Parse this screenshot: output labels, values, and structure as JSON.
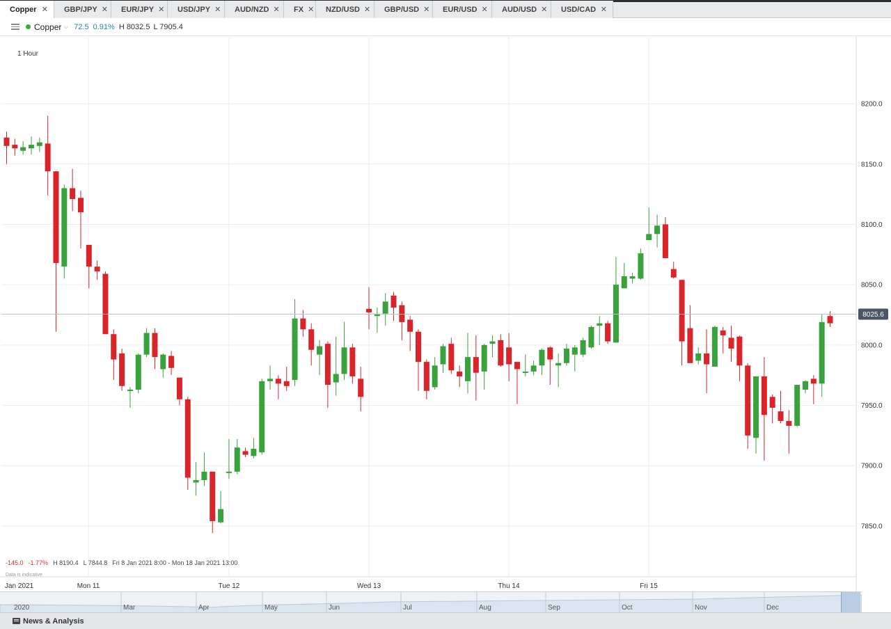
{
  "tabs": [
    {
      "label": "Copper",
      "active": true
    },
    {
      "label": "GBP/JPY"
    },
    {
      "label": "EUR/JPY"
    },
    {
      "label": "USD/JPY"
    },
    {
      "label": "AUD/NZD"
    },
    {
      "label": "FX"
    },
    {
      "label": "NZD/USD"
    },
    {
      "label": "GBP/USD"
    },
    {
      "label": "EUR/USD"
    },
    {
      "label": "AUD/USD"
    },
    {
      "label": "USD/CAD"
    }
  ],
  "close_glyph": "✕",
  "header": {
    "instrument": "Copper",
    "change": "72.5",
    "change_pct": "0.91%",
    "high": "H 8032.5",
    "low": "L 7905.4"
  },
  "chart": {
    "interval": "1 Hour",
    "stats": {
      "change": "-145.0",
      "change_pct": "-1.77%",
      "high": "H 8190.4",
      "low": "L 7844.8",
      "range": "Fri 8 Jan 2021 8:00 - Mon 18 Jan 2021 13:00"
    },
    "indicative_note": "Data is indicative"
  },
  "chart_data": {
    "type": "candlestick",
    "ylim": [
      7815,
      8237
    ],
    "y_ticks": [
      7850.0,
      7900.0,
      7950.0,
      8000.0,
      8050.0,
      8100.0,
      8150.0,
      8200.0
    ],
    "current_price": 8025.6,
    "x_labels": [
      "Jan 2021",
      "Mon 11",
      "Tue 12",
      "Wed 13",
      "Thu 14",
      "Fri 15"
    ],
    "candles": [
      [
        8172,
        8165,
        8177,
        8150
      ],
      [
        8166,
        8163,
        8171,
        8157
      ],
      [
        8161,
        8164,
        8169,
        8158
      ],
      [
        8163,
        8166,
        8173,
        8158
      ],
      [
        8165,
        8168,
        8172,
        8160
      ],
      [
        8167,
        8144,
        8190,
        8124
      ],
      [
        8144,
        8068,
        8144,
        8011
      ],
      [
        8065,
        8130,
        8133,
        8055
      ],
      [
        8130,
        8121,
        8146,
        8111
      ],
      [
        8122,
        8110,
        8128,
        8080
      ],
      [
        8083,
        8065,
        8083,
        8047
      ],
      [
        8065,
        8061,
        8070,
        8054
      ],
      [
        8059,
        8009,
        8061,
        8010
      ],
      [
        8009,
        7988,
        8013,
        7971
      ],
      [
        7993,
        7966,
        7997,
        7962
      ],
      [
        7962,
        7963,
        7965,
        7948
      ],
      [
        7963,
        7992,
        7993,
        7960
      ],
      [
        7992,
        8010,
        8014,
        7990
      ],
      [
        8010,
        7990,
        8014,
        7980
      ],
      [
        7980,
        7992,
        7993,
        7973
      ],
      [
        7991,
        7981,
        7995,
        7975
      ],
      [
        7973,
        7955,
        7973,
        7950
      ],
      [
        7955,
        7890,
        7957,
        7880
      ],
      [
        7886,
        7888,
        7903,
        7875
      ],
      [
        7888,
        7895,
        7911,
        7883
      ],
      [
        7895,
        7854,
        7895,
        7844
      ],
      [
        7853,
        7864,
        7879,
        7852
      ],
      [
        7895,
        7895,
        7922,
        7889
      ],
      [
        7895,
        7915,
        7922,
        7893
      ],
      [
        7912,
        7909,
        7915,
        7907
      ],
      [
        7908,
        7914,
        7923,
        7906
      ],
      [
        7911,
        7970,
        7972,
        7909
      ],
      [
        7970,
        7972,
        7983,
        7963
      ],
      [
        7972,
        7968,
        7975,
        7955
      ],
      [
        7970,
        7966,
        7982,
        7962
      ],
      [
        7971,
        8022,
        8038,
        7966
      ],
      [
        8022,
        8013,
        8029,
        8007
      ],
      [
        8013,
        7996,
        8018,
        7983
      ],
      [
        7992,
        7999,
        8004,
        7975
      ],
      [
        8001,
        7967,
        8003,
        7948
      ],
      [
        7969,
        7976,
        8007,
        7958
      ],
      [
        7976,
        7998,
        8019,
        7971
      ],
      [
        7998,
        7974,
        8001,
        7968
      ],
      [
        7972,
        7957,
        7982,
        7945
      ],
      [
        8030,
        8027,
        8048,
        8013
      ],
      [
        8024,
        8026,
        8031,
        8010
      ],
      [
        8026,
        8036,
        8043,
        8016
      ],
      [
        8041,
        8031,
        8044,
        8020
      ],
      [
        8033,
        8019,
        8036,
        8004
      ],
      [
        8021,
        8011,
        8024,
        7995
      ],
      [
        8011,
        7986,
        8013,
        7962
      ],
      [
        7986,
        7962,
        7988,
        7955
      ],
      [
        7965,
        7983,
        7990,
        7963
      ],
      [
        7984,
        7999,
        8001,
        7977
      ],
      [
        8001,
        7979,
        8006,
        7976
      ],
      [
        7978,
        7974,
        7983,
        7965
      ],
      [
        7970,
        7990,
        8010,
        7960
      ],
      [
        7990,
        7977,
        8008,
        7954
      ],
      [
        7978,
        8000,
        8001,
        7963
      ],
      [
        8001,
        8003,
        8008,
        7990
      ],
      [
        8004,
        7983,
        8009,
        7982
      ],
      [
        7998,
        7984,
        8010,
        7970
      ],
      [
        7986,
        7980,
        7984,
        7951
      ],
      [
        7978,
        7978,
        7992,
        7974
      ],
      [
        7978,
        7983,
        7987,
        7975
      ],
      [
        7983,
        7996,
        7997,
        7975
      ],
      [
        7998,
        7988,
        7999,
        7967
      ],
      [
        7983,
        7985,
        7993,
        7965
      ],
      [
        7985,
        7997,
        8001,
        7983
      ],
      [
        7992,
        7998,
        8000,
        7978
      ],
      [
        7992,
        8004,
        8006,
        7990
      ],
      [
        7998,
        8015,
        8016,
        7997
      ],
      [
        8016,
        8018,
        8024,
        8000
      ],
      [
        8018,
        8003,
        8020,
        8001
      ],
      [
        8002,
        8050,
        8073,
        8002
      ],
      [
        8047,
        8057,
        8068,
        8053
      ],
      [
        8055,
        8057,
        8060,
        8051
      ],
      [
        8055,
        8076,
        8080,
        8054
      ],
      [
        8087,
        8092,
        8114,
        8088
      ],
      [
        8092,
        8099,
        8108,
        8081
      ],
      [
        8100,
        8072,
        8106,
        8074
      ],
      [
        8063,
        8056,
        8069,
        8055
      ],
      [
        8054,
        8003,
        8054,
        7983
      ],
      [
        8014,
        7985,
        8033,
        7987
      ],
      [
        7987,
        7993,
        7998,
        7984
      ],
      [
        7993,
        7984,
        8013,
        7960
      ],
      [
        7982,
        8015,
        8016,
        7983
      ],
      [
        8012,
        8008,
        8015,
        7993
      ],
      [
        8006,
        7997,
        8016,
        7986
      ],
      [
        8007,
        7983,
        8008,
        7970
      ],
      [
        7983,
        7925,
        7985,
        7914
      ],
      [
        7923,
        7974,
        7973,
        7910
      ],
      [
        7974,
        7942,
        7990,
        7904
      ],
      [
        7957,
        7948,
        7959,
        7935
      ],
      [
        7945,
        7937,
        7962,
        7935
      ],
      [
        7937,
        7933,
        7946,
        7910
      ],
      [
        7933,
        7967,
        7967,
        7932
      ],
      [
        7963,
        7970,
        7971,
        7960
      ],
      [
        7972,
        7968,
        7975,
        7951
      ],
      [
        7968,
        8019,
        8026,
        7957
      ],
      [
        8024,
        8018,
        8028,
        8015
      ]
    ]
  },
  "navigator": {
    "labels": [
      "2020",
      "Mar",
      "Apr",
      "May",
      "Jun",
      "Jul",
      "Aug",
      "Sep",
      "Oct",
      "Nov",
      "Dec"
    ]
  },
  "footer": {
    "news_label": "News & Analysis"
  },
  "colors": {
    "up": "#3aa23c",
    "down": "#d9242a",
    "grid": "#ececec",
    "price_line": "#bfbfbf",
    "badge": "#4b5563"
  }
}
